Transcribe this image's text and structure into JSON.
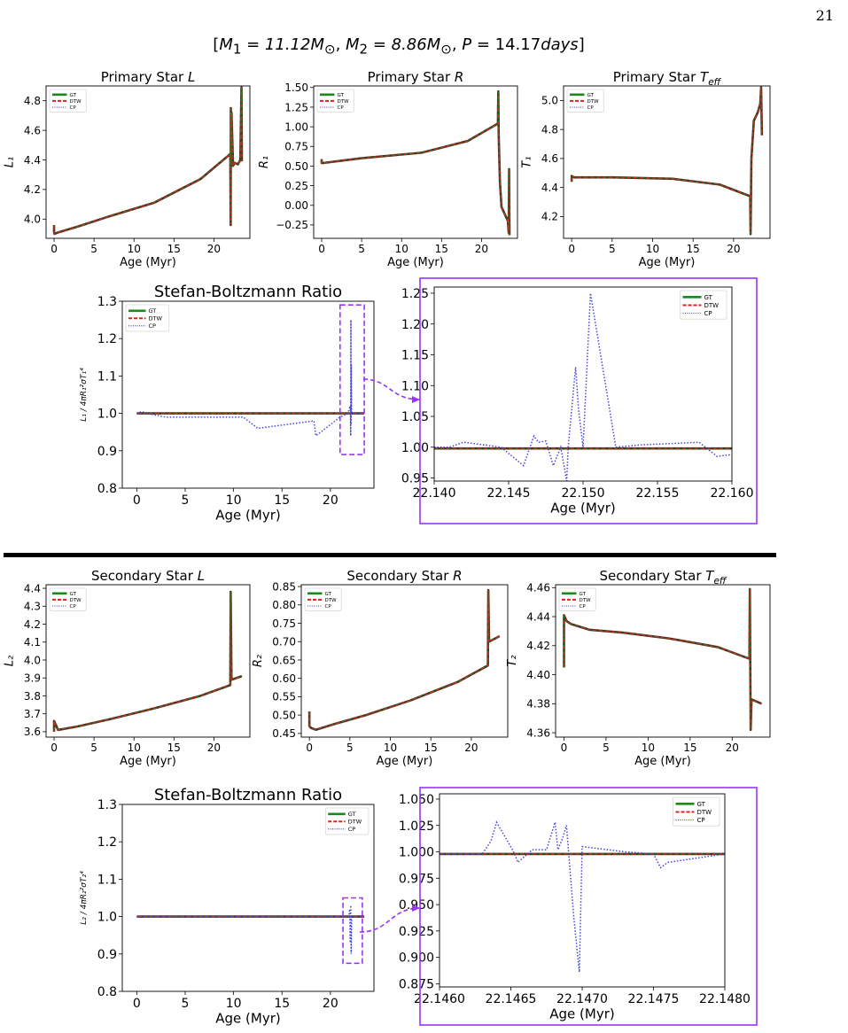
{
  "page_number": "21",
  "heading": {
    "m1_label": "M",
    "m1_sub": "1",
    "m1_value": " = 11.12M",
    "m2_label": "M",
    "m2_sub": "2",
    "m2_value": " = 8.86M",
    "p_label": "P",
    "p_value": " = 14.17",
    "p_unit": "days",
    "sun_symbol": "⊙"
  },
  "colors": {
    "gt": "#1a8a1a",
    "dtw": "#e02020",
    "cp": "#4444dd",
    "dark": "#4a3020",
    "highlight": "#9933ff"
  },
  "legend_labels": [
    "GT",
    "DTW",
    "CP"
  ],
  "chart_data": [
    {
      "id": "p1L",
      "type": "line",
      "title": "Primary Star L",
      "title_main": "Primary Star ",
      "title_var": "L",
      "title_sub": "",
      "xlabel": "Age (Myr)",
      "ylabel": "L₁",
      "xlim": [
        -1,
        24.5
      ],
      "ylim": [
        3.87,
        4.9
      ],
      "xticks": [
        0,
        5,
        10,
        15,
        20
      ],
      "xtick_labels": [
        "0",
        "5",
        "10",
        "15",
        "20"
      ],
      "yticks": [
        4.0,
        4.2,
        4.4,
        4.6,
        4.8
      ],
      "ytick_labels": [
        "4.0",
        "4.2",
        "4.4",
        "4.6",
        "4.8"
      ],
      "legend": "top-left",
      "series": [
        {
          "name": "GT",
          "x": [
            0,
            0,
            0.05,
            0.5,
            3,
            7,
            12.5,
            18.3,
            22.05,
            22.1,
            22.12,
            22.15,
            22.2,
            22.4,
            22.6,
            23.0,
            23.3,
            23.45,
            23.5
          ],
          "y": [
            3.96,
            3.91,
            3.9,
            3.91,
            3.95,
            4.02,
            4.11,
            4.27,
            4.44,
            3.96,
            4.75,
            4.36,
            4.72,
            4.36,
            4.38,
            4.37,
            4.4,
            4.89,
            4.39
          ]
        }
      ]
    },
    {
      "id": "p1R",
      "type": "line",
      "title": "Primary Star R",
      "title_main": "Primary Star ",
      "title_var": "R",
      "title_sub": "",
      "xlabel": "Age (Myr)",
      "ylabel": "R₁",
      "xlim": [
        -1,
        24.5
      ],
      "ylim": [
        -0.42,
        1.52
      ],
      "xticks": [
        0,
        5,
        10,
        15,
        20
      ],
      "xtick_labels": [
        "0",
        "5",
        "10",
        "15",
        "20"
      ],
      "yticks": [
        -0.25,
        0.0,
        0.25,
        0.5,
        0.75,
        1.0,
        1.25,
        1.5
      ],
      "ytick_labels": [
        "−0.25",
        "0.00",
        "0.25",
        "0.50",
        "0.75",
        "1.00",
        "1.25",
        "1.50"
      ],
      "legend": "top-left",
      "series": [
        {
          "name": "GT",
          "x": [
            0,
            0,
            0.3,
            5,
            12.5,
            18.3,
            22.05,
            22.1,
            22.15,
            22.3,
            22.5,
            23.3,
            23.4,
            23.45,
            23.5
          ],
          "y": [
            0.59,
            0.54,
            0.54,
            0.6,
            0.67,
            0.82,
            1.04,
            1.45,
            0.9,
            0.3,
            -0.02,
            -0.2,
            -0.35,
            0.46,
            -0.38
          ]
        }
      ]
    },
    {
      "id": "p1T",
      "type": "line",
      "title": "Primary Star Teff",
      "title_main": "Primary Star ",
      "title_var": "T",
      "title_sub": "eff",
      "xlabel": "Age (Myr)",
      "ylabel": "T₁",
      "xlim": [
        -1,
        24.5
      ],
      "ylim": [
        4.05,
        5.1
      ],
      "xticks": [
        0,
        5,
        10,
        15,
        20
      ],
      "xtick_labels": [
        "0",
        "5",
        "10",
        "15",
        "20"
      ],
      "yticks": [
        4.2,
        4.4,
        4.6,
        4.8,
        5.0
      ],
      "ytick_labels": [
        "4.2",
        "4.4",
        "4.6",
        "4.8",
        "5.0"
      ],
      "legend": "top-left",
      "series": [
        {
          "name": "GT",
          "x": [
            0,
            0,
            0.3,
            5,
            12.5,
            18.3,
            22.05,
            22.1,
            22.2,
            22.5,
            23.0,
            23.3,
            23.4,
            23.5
          ],
          "y": [
            4.44,
            4.48,
            4.47,
            4.47,
            4.46,
            4.42,
            4.34,
            4.08,
            4.6,
            4.86,
            4.92,
            4.98,
            5.09,
            4.76
          ]
        }
      ]
    },
    {
      "id": "p1S",
      "type": "line",
      "title": "Stefan-Boltzmann Ratio",
      "xlabel": "Age (Myr)",
      "ylabel": "L₁ / 4πR₁²σT₁⁴",
      "xlim": [
        -1.5,
        24.5
      ],
      "ylim": [
        0.8,
        1.3
      ],
      "xticks": [
        0,
        5,
        10,
        15,
        20
      ],
      "xtick_labels": [
        "0",
        "5",
        "10",
        "15",
        "20"
      ],
      "yticks": [
        0.8,
        0.9,
        1.0,
        1.1,
        1.2,
        1.3
      ],
      "ytick_labels": [
        "0.8",
        "0.9",
        "1.0",
        "1.1",
        "1.2",
        "1.3"
      ],
      "legend": "top-left",
      "series": [
        {
          "name": "GT",
          "x": [
            0,
            23.5
          ],
          "y": [
            1.0,
            1.0
          ]
        },
        {
          "name": "CP",
          "x": [
            0,
            0.5,
            1,
            2,
            3,
            5,
            8,
            11,
            12.5,
            18.3,
            18.5,
            19.5,
            21,
            21.8,
            22.05,
            22.1,
            22.12,
            22.14,
            22.16,
            22.2,
            22.4,
            23.0,
            23.5
          ],
          "y": [
            1.0,
            1.005,
            1.0,
            0.995,
            0.99,
            0.99,
            0.99,
            0.99,
            0.96,
            0.98,
            0.94,
            0.96,
            0.99,
            1.0,
            1.02,
            0.94,
            1.25,
            0.97,
            1.13,
            1.0,
            1.0,
            1.0,
            1.0
          ]
        }
      ],
      "zoom_range": {
        "x": [
          21,
          23.5
        ],
        "y": [
          0.89,
          1.29
        ]
      }
    },
    {
      "id": "p1Z",
      "type": "line",
      "xlabel": "Age (Myr)",
      "ylabel": "",
      "xlim": [
        22.14,
        22.16
      ],
      "ylim": [
        0.945,
        1.26
      ],
      "xticks": [
        22.14,
        22.145,
        22.15,
        22.155,
        22.16
      ],
      "xtick_labels": [
        "22.140",
        "22.145",
        "22.150",
        "22.155",
        "22.160"
      ],
      "yticks": [
        0.95,
        1.0,
        1.05,
        1.1,
        1.15,
        1.2,
        1.25
      ],
      "ytick_labels": [
        "0.95",
        "1.00",
        "1.05",
        "1.10",
        "1.15",
        "1.20",
        "1.25"
      ],
      "legend": "top-right",
      "series": [
        {
          "name": "GT",
          "x": [
            22.14,
            22.16
          ],
          "y": [
            0.998,
            0.998
          ]
        },
        {
          "name": "CP",
          "x": [
            22.14,
            22.141,
            22.142,
            22.1445,
            22.146,
            22.1467,
            22.147,
            22.1475,
            22.148,
            22.1485,
            22.1489,
            22.149,
            22.1495,
            22.1497,
            22.15,
            22.1505,
            22.1522,
            22.154,
            22.156,
            22.1578,
            22.159,
            22.16
          ],
          "y": [
            1.0,
            1.0,
            1.008,
            1.0,
            0.97,
            1.018,
            1.008,
            1.01,
            0.97,
            1.0,
            0.945,
            1.0,
            1.13,
            1.06,
            1.0,
            1.25,
            1.0,
            1.004,
            1.006,
            1.008,
            0.985,
            0.988
          ]
        }
      ]
    },
    {
      "id": "s2L",
      "type": "line",
      "title": "Secondary Star L",
      "title_main": "Secondary Star ",
      "title_var": "L",
      "title_sub": "",
      "xlabel": "Age (Myr)",
      "ylabel": "L₂",
      "xlim": [
        -1,
        24.5
      ],
      "ylim": [
        3.57,
        4.42
      ],
      "xticks": [
        0,
        5,
        10,
        15,
        20
      ],
      "xtick_labels": [
        "0",
        "5",
        "10",
        "15",
        "20"
      ],
      "yticks": [
        3.6,
        3.7,
        3.8,
        3.9,
        4.0,
        4.1,
        4.2,
        4.3,
        4.4
      ],
      "ytick_labels": [
        "3.6",
        "3.7",
        "3.8",
        "3.9",
        "4.0",
        "4.1",
        "4.2",
        "4.3",
        "4.4"
      ],
      "legend": "top-left",
      "series": [
        {
          "name": "GT",
          "x": [
            0,
            0,
            0.5,
            3,
            7,
            12.5,
            18.3,
            22.05,
            22.1,
            22.2,
            23.5
          ],
          "y": [
            3.6,
            3.66,
            3.61,
            3.63,
            3.67,
            3.73,
            3.8,
            3.86,
            4.38,
            3.89,
            3.91
          ]
        }
      ]
    },
    {
      "id": "s2R",
      "type": "line",
      "title": "Secondary Star R",
      "title_main": "Secondary Star ",
      "title_var": "R",
      "title_sub": "",
      "xlabel": "Age (Myr)",
      "ylabel": "R₂",
      "xlim": [
        -1,
        24.5
      ],
      "ylim": [
        0.44,
        0.855
      ],
      "xticks": [
        0,
        5,
        10,
        15,
        20
      ],
      "xtick_labels": [
        "0",
        "5",
        "10",
        "15",
        "20"
      ],
      "yticks": [
        0.45,
        0.5,
        0.55,
        0.6,
        0.65,
        0.7,
        0.75,
        0.8,
        0.85
      ],
      "ytick_labels": [
        "0.45",
        "0.50",
        "0.55",
        "0.60",
        "0.65",
        "0.70",
        "0.75",
        "0.80",
        "0.85"
      ],
      "legend": "top-left",
      "series": [
        {
          "name": "GT",
          "x": [
            0,
            0,
            0.2,
            0.8,
            3,
            7,
            12.5,
            18.3,
            22.05,
            22.1,
            22.2,
            23.5
          ],
          "y": [
            0.51,
            0.47,
            0.465,
            0.46,
            0.475,
            0.5,
            0.54,
            0.59,
            0.635,
            0.84,
            0.7,
            0.715
          ]
        }
      ]
    },
    {
      "id": "s2T",
      "type": "line",
      "title": "Secondary Star Teff",
      "title_main": "Secondary Star ",
      "title_var": "T",
      "title_sub": "eff",
      "xlabel": "Age (Myr)",
      "ylabel": "T₂",
      "xlim": [
        -1,
        24.5
      ],
      "ylim": [
        4.357,
        4.462
      ],
      "xticks": [
        0,
        5,
        10,
        15,
        20
      ],
      "xtick_labels": [
        "0",
        "5",
        "10",
        "15",
        "20"
      ],
      "yticks": [
        4.36,
        4.38,
        4.4,
        4.42,
        4.44,
        4.46
      ],
      "ytick_labels": [
        "4.36",
        "4.38",
        "4.40",
        "4.42",
        "4.44",
        "4.46"
      ],
      "legend": "top-left",
      "series": [
        {
          "name": "GT",
          "x": [
            0,
            0,
            0.3,
            0.8,
            3,
            7,
            12.5,
            18.3,
            22.05,
            22.1,
            22.2,
            22.3,
            23.5
          ],
          "y": [
            4.405,
            4.441,
            4.437,
            4.435,
            4.431,
            4.429,
            4.425,
            4.419,
            4.411,
            4.459,
            4.362,
            4.383,
            4.38
          ]
        }
      ]
    },
    {
      "id": "s2S",
      "type": "line",
      "title": "Stefan-Boltzmann Ratio",
      "xlabel": "Age (Myr)",
      "ylabel": "L₂ / 4πR₂²σT₂⁴",
      "xlim": [
        -1.5,
        24.5
      ],
      "ylim": [
        0.8,
        1.3
      ],
      "xticks": [
        0,
        5,
        10,
        15,
        20
      ],
      "xtick_labels": [
        "0",
        "5",
        "10",
        "15",
        "20"
      ],
      "yticks": [
        0.8,
        0.9,
        1.0,
        1.1,
        1.2,
        1.3
      ],
      "ytick_labels": [
        "0.8",
        "0.9",
        "1.0",
        "1.1",
        "1.2",
        "1.3"
      ],
      "legend": "top-right",
      "series": [
        {
          "name": "GT",
          "x": [
            0,
            23.5
          ],
          "y": [
            1.0,
            1.0
          ]
        },
        {
          "name": "CP",
          "x": [
            0,
            21.9,
            22.0,
            22.05,
            22.1,
            22.15,
            22.2,
            23.5
          ],
          "y": [
            1.0,
            1.0,
            1.02,
            0.93,
            1.03,
            0.9,
            1.0,
            1.0
          ]
        }
      ],
      "zoom_range": {
        "x": [
          21.3,
          23.3
        ],
        "y": [
          0.875,
          1.05
        ]
      }
    },
    {
      "id": "s2Z",
      "type": "line",
      "xlabel": "Age (Myr)",
      "ylabel": "",
      "xlim": [
        22.146,
        22.148
      ],
      "ylim": [
        0.872,
        1.055
      ],
      "xticks": [
        22.146,
        22.1465,
        22.147,
        22.1475,
        22.148
      ],
      "xtick_labels": [
        "22.1460",
        "22.1465",
        "22.1470",
        "22.1475",
        "22.1480"
      ],
      "yticks": [
        0.875,
        0.9,
        0.925,
        0.95,
        0.975,
        1.0,
        1.025,
        1.05
      ],
      "ytick_labels": [
        "0.875",
        "0.900",
        "0.925",
        "0.950",
        "0.975",
        "1.000",
        "1.025",
        "1.050"
      ],
      "legend": "top-right",
      "series": [
        {
          "name": "GT",
          "x": [
            22.146,
            22.148
          ],
          "y": [
            0.998,
            0.998
          ]
        },
        {
          "name": "CP",
          "x": [
            22.146,
            22.1463,
            22.14636,
            22.1464,
            22.14652,
            22.14655,
            22.14665,
            22.14675,
            22.14681,
            22.14683,
            22.14686,
            22.14689,
            22.14694,
            22.14698,
            22.147,
            22.1473,
            22.1475,
            22.14755,
            22.1476,
            22.148
          ],
          "y": [
            0.998,
            0.998,
            1.01,
            1.028,
            1.0,
            0.99,
            1.002,
            1.002,
            1.028,
            1.002,
            1.012,
            1.025,
            0.94,
            0.886,
            1.005,
            1.0,
            0.998,
            0.985,
            0.99,
            0.998
          ]
        }
      ]
    }
  ]
}
